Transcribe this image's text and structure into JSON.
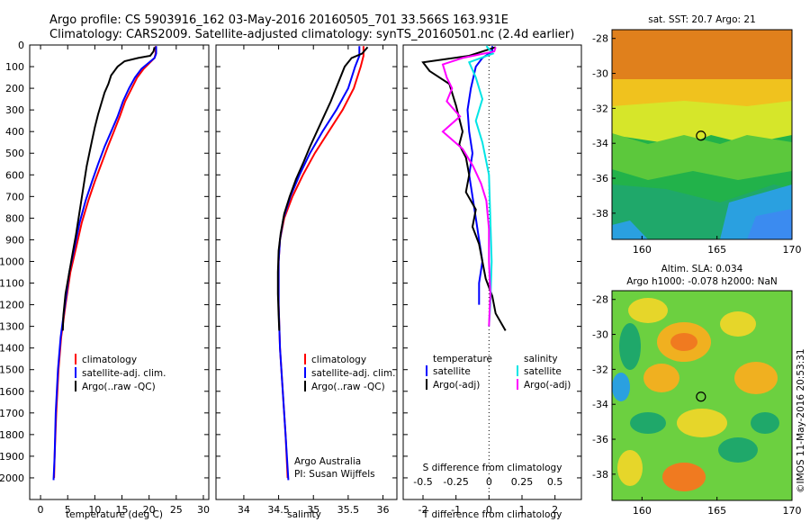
{
  "header": {
    "title_line1": "Argo profile: CS 5903916_162 03-May-2016 20160505_701 33.566S 163.931E",
    "title_line2": "Climatology: CARS2009. Satellite-adjusted climatology: synTS_20160501.nc (2.4d earlier)"
  },
  "colors": {
    "climatology": "#ff0000",
    "satellite": "#0000ff",
    "argo": "#000000",
    "sal_satellite": "#00e5e5",
    "sal_argo": "#ff00ff"
  },
  "chart_data": [
    {
      "id": "temperature",
      "type": "line",
      "xlabel": "temperature (deg C)",
      "ylabel": "",
      "xlim": [
        -2,
        31
      ],
      "ylim": [
        2100,
        0
      ],
      "xticks": [
        0,
        5,
        10,
        15,
        20,
        25,
        30
      ],
      "yticks": [
        0,
        100,
        200,
        300,
        400,
        500,
        600,
        700,
        800,
        900,
        1000,
        1100,
        1200,
        1300,
        1400,
        1500,
        1600,
        1700,
        1800,
        1900,
        2000
      ],
      "legend": {
        "position": "lower-middle",
        "items": [
          {
            "label": "climatology",
            "color": "#ff0000"
          },
          {
            "label": "satellite-adj. clim.",
            "color": "#0000ff"
          },
          {
            "label": "Argo(..raw -QC)",
            "color": "#000000"
          }
        ]
      },
      "series": [
        {
          "name": "climatology",
          "color": "#ff0000",
          "points": [
            [
              21.2,
              5
            ],
            [
              21.2,
              40
            ],
            [
              21.0,
              60
            ],
            [
              20.0,
              85
            ],
            [
              19.0,
              110
            ],
            [
              17.8,
              150
            ],
            [
              16.8,
              200
            ],
            [
              15.6,
              260
            ],
            [
              14.6,
              330
            ],
            [
              13.5,
              400
            ],
            [
              12.4,
              470
            ],
            [
              11.2,
              550
            ],
            [
              10.0,
              630
            ],
            [
              8.8,
              720
            ],
            [
              7.6,
              820
            ],
            [
              6.6,
              930
            ],
            [
              5.5,
              1050
            ],
            [
              4.6,
              1200
            ],
            [
              3.8,
              1350
            ],
            [
              3.3,
              1500
            ],
            [
              2.9,
              1700
            ],
            [
              2.6,
              1900
            ],
            [
              2.5,
              2000
            ]
          ]
        },
        {
          "name": "satellite-adj. clim.",
          "color": "#0000ff",
          "points": [
            [
              21.3,
              5
            ],
            [
              21.3,
              40
            ],
            [
              21.0,
              60
            ],
            [
              19.8,
              85
            ],
            [
              18.6,
              110
            ],
            [
              17.4,
              150
            ],
            [
              16.3,
              200
            ],
            [
              15.2,
              260
            ],
            [
              14.2,
              330
            ],
            [
              13.0,
              400
            ],
            [
              11.8,
              470
            ],
            [
              10.6,
              550
            ],
            [
              9.5,
              630
            ],
            [
              8.3,
              720
            ],
            [
              7.2,
              820
            ],
            [
              6.3,
              930
            ],
            [
              5.3,
              1050
            ],
            [
              4.5,
              1200
            ],
            [
              3.7,
              1350
            ],
            [
              3.2,
              1500
            ],
            [
              2.8,
              1700
            ],
            [
              2.6,
              1900
            ],
            [
              2.4,
              2010
            ]
          ]
        },
        {
          "name": "Argo(..raw -QC)",
          "color": "#000000",
          "points": [
            [
              21.0,
              10
            ],
            [
              20.8,
              30
            ],
            [
              20.2,
              50
            ],
            [
              18.0,
              60
            ],
            [
              15.5,
              75
            ],
            [
              14.2,
              100
            ],
            [
              13.0,
              140
            ],
            [
              12.5,
              180
            ],
            [
              11.8,
              220
            ],
            [
              11.2,
              270
            ],
            [
              10.6,
              320
            ],
            [
              10.0,
              380
            ],
            [
              9.5,
              440
            ],
            [
              9.0,
              500
            ],
            [
              8.5,
              560
            ],
            [
              8.0,
              640
            ],
            [
              7.5,
              720
            ],
            [
              7.0,
              800
            ],
            [
              6.5,
              880
            ],
            [
              6.0,
              950
            ],
            [
              5.3,
              1050
            ],
            [
              4.6,
              1150
            ],
            [
              4.2,
              1250
            ],
            [
              4.1,
              1320
            ]
          ]
        }
      ]
    },
    {
      "id": "salinity",
      "type": "line",
      "xlabel": "salinity",
      "ylabel": "",
      "xlim": [
        33.6,
        36.2
      ],
      "ylim": [
        2100,
        0
      ],
      "xticks": [
        34,
        34.5,
        35,
        35.5,
        36
      ],
      "xtick_labels": [
        "34",
        "34.5",
        "35",
        "35.5",
        "36"
      ],
      "legend": {
        "position": "lower-middle",
        "items": [
          {
            "label": "climatology",
            "color": "#ff0000"
          },
          {
            "label": "satellite-adj. clim.",
            "color": "#0000ff"
          },
          {
            "label": "Argo(..raw -QC)",
            "color": "#000000"
          }
        ]
      },
      "annotation_line1": "Argo Australia",
      "annotation_line2": "PI: Susan Wijffels",
      "series": [
        {
          "name": "climatology",
          "color": "#ff0000",
          "points": [
            [
              35.72,
              5
            ],
            [
              35.72,
              50
            ],
            [
              35.68,
              100
            ],
            [
              35.58,
              200
            ],
            [
              35.42,
              300
            ],
            [
              35.22,
              400
            ],
            [
              35.02,
              500
            ],
            [
              34.85,
              600
            ],
            [
              34.7,
              700
            ],
            [
              34.58,
              800
            ],
            [
              34.52,
              900
            ],
            [
              34.5,
              1000
            ],
            [
              34.5,
              1200
            ],
            [
              34.52,
              1400
            ],
            [
              34.56,
              1600
            ],
            [
              34.6,
              1800
            ],
            [
              34.63,
              2000
            ]
          ]
        },
        {
          "name": "satellite-adj. clim.",
          "color": "#0000ff",
          "points": [
            [
              35.66,
              5
            ],
            [
              35.66,
              50
            ],
            [
              35.6,
              100
            ],
            [
              35.5,
              200
            ],
            [
              35.33,
              300
            ],
            [
              35.13,
              400
            ],
            [
              34.95,
              500
            ],
            [
              34.8,
              600
            ],
            [
              34.67,
              700
            ],
            [
              34.57,
              800
            ],
            [
              34.52,
              900
            ],
            [
              34.5,
              1000
            ],
            [
              34.5,
              1200
            ],
            [
              34.52,
              1400
            ],
            [
              34.56,
              1600
            ],
            [
              34.6,
              1800
            ],
            [
              34.64,
              2010
            ]
          ]
        },
        {
          "name": "Argo(..raw -QC)",
          "color": "#000000",
          "points": [
            [
              35.78,
              10
            ],
            [
              35.7,
              40
            ],
            [
              35.55,
              60
            ],
            [
              35.45,
              100
            ],
            [
              35.35,
              180
            ],
            [
              35.25,
              260
            ],
            [
              35.15,
              330
            ],
            [
              35.05,
              400
            ],
            [
              34.95,
              470
            ],
            [
              34.86,
              540
            ],
            [
              34.75,
              620
            ],
            [
              34.66,
              700
            ],
            [
              34.58,
              780
            ],
            [
              34.53,
              870
            ],
            [
              34.5,
              950
            ],
            [
              34.49,
              1050
            ],
            [
              34.49,
              1150
            ],
            [
              34.5,
              1250
            ],
            [
              34.51,
              1320
            ]
          ]
        }
      ]
    },
    {
      "id": "difference",
      "type": "line",
      "xlabel": "T difference from climatology",
      "top_label": "S difference from climatology",
      "xlim": [
        -2.6,
        2.8
      ],
      "ylim": [
        2100,
        0
      ],
      "xticks": [
        -2,
        -1,
        0,
        1,
        2
      ],
      "xtick_labels": [
        "-2",
        "-1",
        "0",
        "1",
        "2"
      ],
      "sticks": [
        -0.5,
        -0.25,
        0,
        0.25,
        0.5
      ],
      "stick_labels": [
        "-0.5",
        "-0.25",
        "0",
        "0.25",
        "0.5"
      ],
      "legend": {
        "temperature_heading": "temperature",
        "salinity_heading": "salinity",
        "items": [
          {
            "label": "satellite",
            "color": "#0000ff"
          },
          {
            "label": "Argo(-adj)",
            "color": "#000000"
          },
          {
            "label": "satellite",
            "color": "#00e5e5"
          },
          {
            "label": "Argo(-adj)",
            "color": "#ff00ff"
          }
        ]
      },
      "series": [
        {
          "name": "temperature satellite",
          "color": "#0000ff",
          "points": [
            [
              0.1,
              5
            ],
            [
              0.1,
              30
            ],
            [
              -0.2,
              60
            ],
            [
              -0.4,
              100
            ],
            [
              -0.55,
              200
            ],
            [
              -0.65,
              300
            ],
            [
              -0.6,
              400
            ],
            [
              -0.5,
              500
            ],
            [
              -0.6,
              600
            ],
            [
              -0.5,
              700
            ],
            [
              -0.4,
              800
            ],
            [
              -0.3,
              900
            ],
            [
              -0.2,
              1000
            ],
            [
              -0.3,
              1100
            ],
            [
              -0.3,
              1200
            ]
          ]
        },
        {
          "name": "temperature Argo(-adj)",
          "color": "#000000",
          "points": [
            [
              0.2,
              10
            ],
            [
              -0.6,
              50
            ],
            [
              -2.0,
              80
            ],
            [
              -1.8,
              120
            ],
            [
              -1.2,
              180
            ],
            [
              -1.1,
              230
            ],
            [
              -1.0,
              280
            ],
            [
              -0.9,
              340
            ],
            [
              -0.8,
              400
            ],
            [
              -0.9,
              460
            ],
            [
              -0.7,
              520
            ],
            [
              -0.6,
              600
            ],
            [
              -0.7,
              680
            ],
            [
              -0.4,
              760
            ],
            [
              -0.5,
              840
            ],
            [
              -0.3,
              920
            ],
            [
              -0.2,
              1000
            ],
            [
              -0.1,
              1080
            ],
            [
              0.1,
              1160
            ],
            [
              0.2,
              1240
            ],
            [
              0.5,
              1320
            ]
          ]
        },
        {
          "name": "salinity satellite",
          "color": "#00e5e5",
          "points": [
            [
              -0.02,
              5
            ],
            [
              0.03,
              40
            ],
            [
              -0.15,
              80
            ],
            [
              -0.1,
              150
            ],
            [
              -0.05,
              250
            ],
            [
              -0.1,
              350
            ],
            [
              -0.05,
              450
            ],
            [
              0.0,
              600
            ],
            [
              0.01,
              800
            ],
            [
              0.02,
              1000
            ],
            [
              0.01,
              1200
            ],
            [
              0.0,
              1300
            ]
          ]
        },
        {
          "name": "salinity Argo(-adj)",
          "color": "#ff00ff",
          "points": [
            [
              0.05,
              10
            ],
            [
              0.04,
              30
            ],
            [
              -0.2,
              60
            ],
            [
              -0.35,
              90
            ],
            [
              -0.32,
              150
            ],
            [
              -0.28,
              200
            ],
            [
              -0.32,
              260
            ],
            [
              -0.22,
              330
            ],
            [
              -0.35,
              400
            ],
            [
              -0.2,
              480
            ],
            [
              -0.12,
              560
            ],
            [
              -0.06,
              640
            ],
            [
              -0.02,
              720
            ],
            [
              0.0,
              850
            ],
            [
              0.0,
              1000
            ],
            [
              0.01,
              1150
            ],
            [
              0.0,
              1300
            ]
          ]
        }
      ]
    },
    {
      "id": "sst-map",
      "type": "heatmap",
      "title": "sat. SST: 20.7 Argo: 21",
      "xlim": [
        158,
        170
      ],
      "ylim": [
        -39.5,
        -27.5
      ],
      "xticks": [
        160,
        165,
        170
      ],
      "yticks": [
        -28,
        -30,
        -32,
        -34,
        -36,
        -38
      ],
      "float_position": {
        "lon": 163.931,
        "lat": -33.566
      }
    },
    {
      "id": "sla-map",
      "type": "heatmap",
      "title_line1": "Altim. SLA: 0.034",
      "title_line2": "Argo h1000: -0.078 h2000: NaN",
      "xlim": [
        158,
        170
      ],
      "ylim": [
        -39.5,
        -27.5
      ],
      "xticks": [
        160,
        165,
        170
      ],
      "yticks": [
        -28,
        -30,
        -32,
        -34,
        -36,
        -38
      ],
      "float_position": {
        "lon": 163.931,
        "lat": -33.566
      }
    }
  ],
  "footer": {
    "stamp": "©IMOS 11-May-2016 20:53:31"
  }
}
